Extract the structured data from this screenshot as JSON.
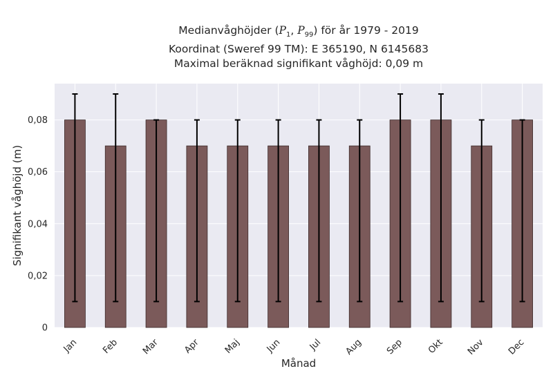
{
  "chart_data": {
    "type": "bar",
    "title_lines": [
      {
        "prefix": "Medianvåghöjder (",
        "p_low": "P",
        "p_low_sub": "1",
        "sep": ", ",
        "p_high": "P",
        "p_high_sub": "99",
        "suffix": ") för år 1979 - 2019"
      },
      "Koordinat (Sweref 99 TM): E 365190, N 6145683",
      "Maximal beräknad signifikant våghöjd: 0,09 m"
    ],
    "xlabel": "Månad",
    "ylabel": "Signifikant våghöjd (m)",
    "categories": [
      "Jan",
      "Feb",
      "Mar",
      "Apr",
      "Maj",
      "Jun",
      "Jul",
      "Aug",
      "Sep",
      "Okt",
      "Nov",
      "Dec"
    ],
    "values": [
      0.08,
      0.07,
      0.08,
      0.07,
      0.07,
      0.07,
      0.07,
      0.07,
      0.08,
      0.08,
      0.07,
      0.08
    ],
    "err_low": [
      0.01,
      0.01,
      0.01,
      0.01,
      0.01,
      0.01,
      0.01,
      0.01,
      0.01,
      0.01,
      0.01,
      0.01
    ],
    "err_high": [
      0.09,
      0.09,
      0.08,
      0.08,
      0.08,
      0.08,
      0.08,
      0.08,
      0.09,
      0.09,
      0.08,
      0.08
    ],
    "ylim": [
      0,
      0.094
    ],
    "yticks": [
      0,
      0.02,
      0.04,
      0.06,
      0.08
    ],
    "ytick_labels": [
      "0",
      "0,02",
      "0,04",
      "0,06",
      "0,08"
    ],
    "grid": true,
    "colors": {
      "bar": "#7b5a5a",
      "bar_edge": "#3d2b2b",
      "error_bar": "#000000",
      "background": "#eaeaf2",
      "grid": "#ffffff"
    }
  }
}
